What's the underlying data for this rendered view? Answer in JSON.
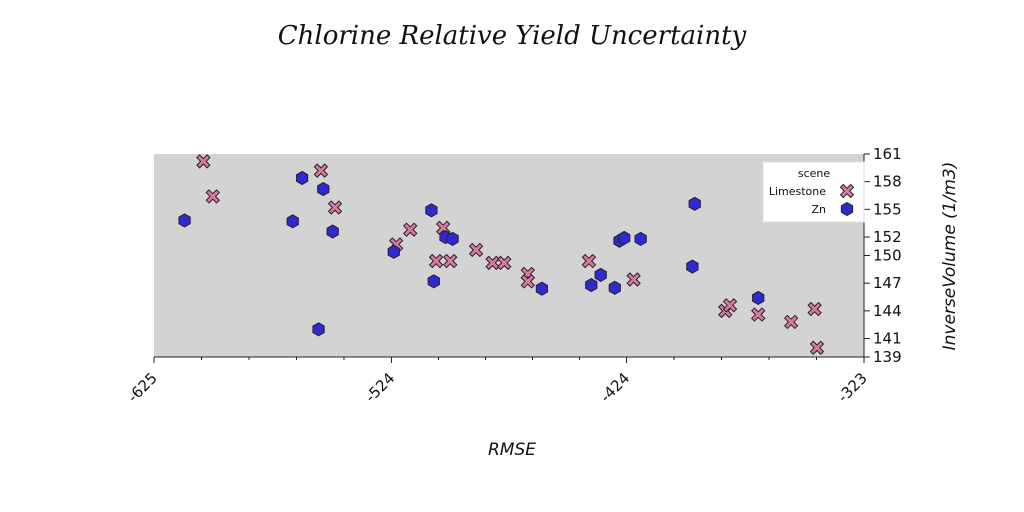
{
  "chart_data": {
    "type": "scatter",
    "title": "Chlorine Relative Yield Uncertainty",
    "xlabel": "RMSE",
    "ylabel": "InverseVolume (1/m3)",
    "xlim": [
      -625,
      -323
    ],
    "ylim": [
      139,
      161
    ],
    "x_ticks": [
      "-625",
      "-524",
      "-424",
      "-323"
    ],
    "y_ticks": [
      "139",
      "141",
      "144",
      "147",
      "150",
      "152",
      "155",
      "158",
      "161"
    ],
    "background": "#d3d3d3",
    "grid": false,
    "legend": {
      "title": "scene",
      "position": "top-right"
    },
    "series": [
      {
        "name": "Limestone",
        "marker": "x",
        "color": "#d87aa0",
        "points": [
          [
            -604,
            160.2
          ],
          [
            -600,
            156.4
          ],
          [
            -554,
            159.2
          ],
          [
            -548,
            155.2
          ],
          [
            -522,
            151.2
          ],
          [
            -516,
            152.8
          ],
          [
            -505,
            149.4
          ],
          [
            -502,
            153.0
          ],
          [
            -499,
            149.4
          ],
          [
            -488,
            150.6
          ],
          [
            -481,
            149.2
          ],
          [
            -476,
            149.2
          ],
          [
            -466,
            148.0
          ],
          [
            -466,
            147.2
          ],
          [
            -440,
            149.4
          ],
          [
            -421,
            147.4
          ],
          [
            -382,
            144.0
          ],
          [
            -380,
            144.6
          ],
          [
            -368,
            143.6
          ],
          [
            -354,
            142.8
          ],
          [
            -344,
            144.2
          ],
          [
            -343,
            140.0
          ]
        ]
      },
      {
        "name": "Zn",
        "marker": "h",
        "color": "#2d2bd0",
        "points": [
          [
            -612,
            153.8
          ],
          [
            -566,
            153.7
          ],
          [
            -562,
            158.4
          ],
          [
            -555,
            142.0
          ],
          [
            -553,
            157.2
          ],
          [
            -549,
            152.6
          ],
          [
            -523,
            150.4
          ],
          [
            -507,
            154.9
          ],
          [
            -506,
            147.2
          ],
          [
            -501,
            152.0
          ],
          [
            -498,
            151.8
          ],
          [
            -460,
            146.4
          ],
          [
            -439,
            146.8
          ],
          [
            -435,
            147.9
          ],
          [
            -429,
            146.5
          ],
          [
            -427,
            151.6
          ],
          [
            -425,
            151.9
          ],
          [
            -418,
            151.8
          ],
          [
            -395,
            155.6
          ],
          [
            -396,
            148.8
          ],
          [
            -368,
            145.4
          ]
        ]
      }
    ]
  }
}
